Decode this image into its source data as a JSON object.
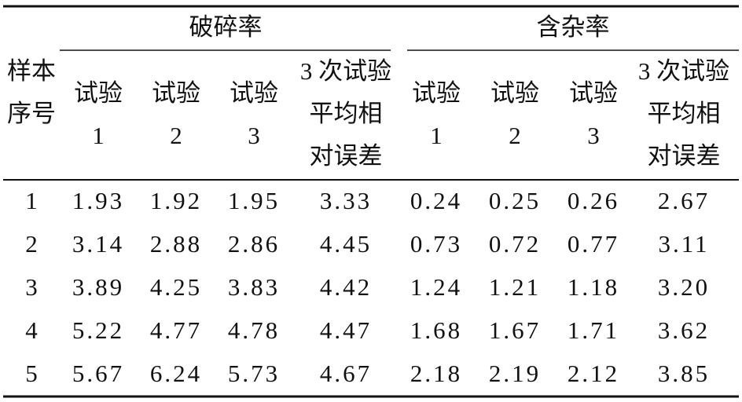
{
  "table": {
    "group_headers": [
      "破碎率",
      "含杂率"
    ],
    "row_header": [
      "样本",
      "序号"
    ],
    "sub_headers": [
      [
        "试验",
        "1"
      ],
      [
        "试验",
        "2"
      ],
      [
        "试验",
        "3"
      ],
      [
        "3 次试验",
        "平均相",
        "对误差"
      ],
      [
        "试验",
        "1"
      ],
      [
        "试验",
        "2"
      ],
      [
        "试验",
        "3"
      ],
      [
        "3 次试验",
        "平均相",
        "对误差"
      ]
    ],
    "rows": [
      [
        "1",
        "1.93",
        "1.92",
        "1.95",
        "3.33",
        "0.24",
        "0.25",
        "0.26",
        "2.67"
      ],
      [
        "2",
        "3.14",
        "2.88",
        "2.86",
        "4.45",
        "0.73",
        "0.72",
        "0.77",
        "3.11"
      ],
      [
        "3",
        "3.89",
        "4.25",
        "3.83",
        "4.42",
        "1.24",
        "1.21",
        "1.18",
        "3.20"
      ],
      [
        "4",
        "5.22",
        "4.77",
        "4.78",
        "4.47",
        "1.68",
        "1.67",
        "1.71",
        "3.62"
      ],
      [
        "5",
        "5.67",
        "6.24",
        "5.73",
        "4.67",
        "2.18",
        "2.19",
        "2.12",
        "3.85"
      ]
    ]
  }
}
